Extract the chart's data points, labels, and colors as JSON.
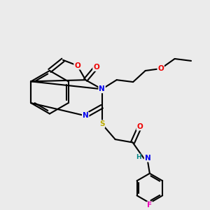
{
  "bg_color": "#ebebeb",
  "atom_colors": {
    "C": "#000000",
    "N": "#0000ee",
    "O": "#ee0000",
    "S": "#bbaa00",
    "F": "#ee00bb",
    "H": "#008888"
  },
  "bond_color": "#000000",
  "bond_width": 1.5,
  "figsize": [
    3.0,
    3.0
  ],
  "dpi": 100
}
